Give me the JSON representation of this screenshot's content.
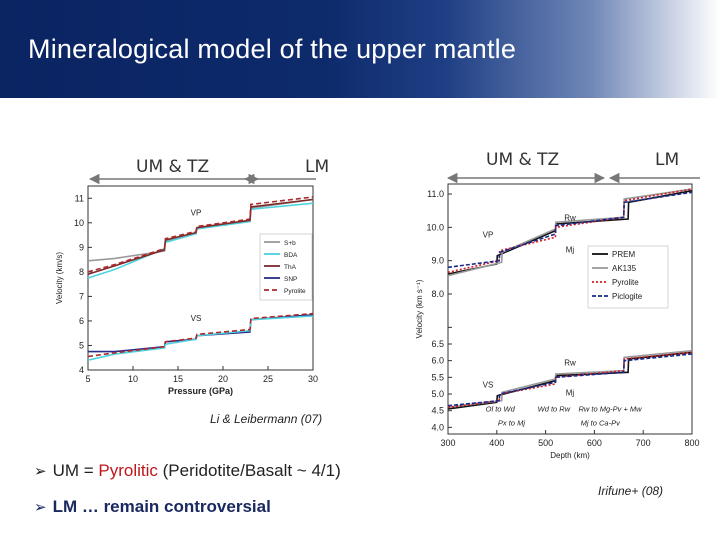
{
  "slide": {
    "title": "Mineralogical model of the upper mantle",
    "left_labels": {
      "um_tz": "UM & TZ",
      "lm": "LM"
    },
    "right_labels": {
      "um_tz": "UM & TZ",
      "lm": "LM"
    },
    "left_caption": "Li & Leibermann (07)",
    "right_caption": "Irifune+ (08)",
    "bullets": [
      {
        "prefix": "UM = ",
        "highlight": "Pyrolitic",
        "suffix": " (Peridotite/Basalt ~ 4/1)"
      },
      {
        "text": "LM … remain controversial"
      }
    ]
  },
  "chart_data": [
    {
      "type": "line",
      "xlabel": "Pressure (GPa)",
      "ylabel": "Velocity (km/s)",
      "xlim": [
        5,
        30
      ],
      "ylim": [
        4,
        11.5
      ],
      "xticks": [
        5,
        10,
        15,
        20,
        25,
        30
      ],
      "yticks": [
        4,
        5,
        6,
        7,
        8,
        9,
        10,
        11
      ],
      "annotations": [
        {
          "text": "VP",
          "x": 17,
          "y": 10.3
        },
        {
          "text": "VS",
          "x": 17,
          "y": 6.0
        }
      ],
      "legend": {
        "placement": "right",
        "entries": [
          "S+b",
          "BDA",
          "ThA",
          "SNP",
          "Pyrolite"
        ]
      },
      "series": [
        {
          "name": "S+b",
          "color": "#9a9a9a",
          "dash": "",
          "x": [
            5,
            8,
            13.5,
            13.6,
            17,
            17.1,
            23,
            23.1,
            30
          ],
          "y": [
            8.45,
            8.55,
            8.85,
            9.25,
            9.6,
            9.8,
            10.1,
            10.6,
            10.95
          ]
        },
        {
          "name": "BDA",
          "color": "#4fd2e0",
          "dash": "",
          "x": [
            5,
            8,
            13.5,
            13.6,
            17,
            17.1,
            23,
            23.1,
            30
          ],
          "y": [
            7.75,
            8.1,
            8.95,
            9.2,
            9.55,
            9.75,
            10.05,
            10.55,
            10.8
          ]
        },
        {
          "name": "ThA",
          "color": "#7a2a2a",
          "dash": "",
          "x": [
            5,
            8,
            13.5,
            13.6,
            17,
            17.1,
            23,
            23.1,
            30
          ],
          "y": [
            7.9,
            8.25,
            8.9,
            9.3,
            9.6,
            9.8,
            10.1,
            10.65,
            10.95
          ]
        },
        {
          "name": "SNP",
          "color": "#2a2a8a",
          "dash": "",
          "x": [
            5,
            8,
            13.5,
            13.6,
            17,
            17.1,
            23,
            23.1,
            30
          ],
          "y": [
            4.75,
            4.75,
            4.95,
            5.15,
            5.25,
            5.4,
            5.55,
            6.05,
            6.25
          ]
        },
        {
          "name": "Pyrolite",
          "color": "#b0282a",
          "dash": "5,3",
          "x": [
            5,
            8,
            13.5,
            13.6,
            17,
            17.1,
            23,
            23.1,
            30
          ],
          "y": [
            8.0,
            8.3,
            8.95,
            9.35,
            9.65,
            9.85,
            10.15,
            10.75,
            11.05
          ]
        },
        {
          "name": "",
          "color": "#4fd2e0",
          "dash": "",
          "x": [
            5,
            8,
            13.5,
            13.6,
            17,
            17.1,
            23,
            23.1,
            30
          ],
          "y": [
            4.4,
            4.65,
            4.9,
            5.05,
            5.25,
            5.4,
            5.6,
            6.05,
            6.2
          ]
        },
        {
          "name": "",
          "color": "#b0282a",
          "dash": "5,3",
          "x": [
            5,
            8,
            13.5,
            13.6,
            17,
            17.1,
            23,
            23.1,
            30
          ],
          "y": [
            4.55,
            4.7,
            4.95,
            5.15,
            5.3,
            5.45,
            5.65,
            6.1,
            6.3
          ]
        }
      ]
    },
    {
      "type": "line",
      "xlabel": "Depth (km)",
      "ylabel": "Velocity (km s⁻¹)",
      "xlim": [
        300,
        800
      ],
      "ylim": [
        3.8,
        11.3
      ],
      "xticks": [
        300,
        400,
        500,
        600,
        700,
        800
      ],
      "yticks": [
        4.0,
        4.5,
        5.0,
        5.5,
        6.0,
        6.5,
        7.0,
        8.0,
        9.0,
        10.0,
        11.0
      ],
      "yticks_labeled": [
        4.0,
        4.5,
        5.0,
        5.5,
        6.0,
        6.5,
        8.0,
        9.0,
        10.0,
        11.0
      ],
      "annotations": [
        {
          "text": "Rw",
          "x": 550,
          "y": 10.2
        },
        {
          "text": "Mj",
          "x": 550,
          "y": 9.25
        },
        {
          "text": "Rw",
          "x": 550,
          "y": 5.85
        },
        {
          "text": "Mj",
          "x": 550,
          "y": 4.95
        },
        {
          "text": "VP",
          "x": 382,
          "y": 9.7
        },
        {
          "text": "VS",
          "x": 382,
          "y": 5.2
        }
      ],
      "legend": {
        "placement": "right",
        "entries": [
          "PREM",
          "AK135",
          "Pyrolite",
          "Piclogite"
        ]
      },
      "phase_labels": [
        {
          "text": "Ol to Wd",
          "x": 407,
          "y": 4.47
        },
        {
          "text": "Wd to Rw",
          "x": 517,
          "y": 4.47
        },
        {
          "text": "Rw to Mg-Pv + Mw",
          "x": 632,
          "y": 4.47
        },
        {
          "text": "Px to Mj",
          "x": 430,
          "y": 4.05
        },
        {
          "text": "Mj to Ca-Pv",
          "x": 612,
          "y": 4.05
        }
      ],
      "series": [
        {
          "name": "PREM",
          "color": "#111111",
          "dash": "",
          "x": [
            300,
            400,
            401,
            520,
            521,
            669,
            670,
            800
          ],
          "y": [
            8.6,
            8.9,
            9.15,
            9.9,
            10.1,
            10.25,
            10.75,
            11.1
          ]
        },
        {
          "name": "AK135",
          "color": "#9a9a9a",
          "dash": "",
          "x": [
            300,
            410,
            411,
            520,
            521,
            660,
            661,
            800
          ],
          "y": [
            8.55,
            8.95,
            9.25,
            9.95,
            10.15,
            10.3,
            10.85,
            11.15
          ]
        },
        {
          "name": "Pyrolite",
          "color": "#d41c24",
          "dash": "2,2",
          "x": [
            300,
            405,
            406,
            520,
            521,
            660,
            661,
            800
          ],
          "y": [
            8.65,
            9.0,
            9.3,
            9.7,
            10.0,
            10.3,
            10.8,
            11.15
          ]
        },
        {
          "name": "Piclogite",
          "color": "#1a2a8a",
          "dash": "4,2",
          "x": [
            300,
            405,
            406,
            520,
            521,
            660,
            661,
            800
          ],
          "y": [
            8.8,
            9.0,
            9.25,
            9.8,
            10.05,
            10.3,
            10.75,
            11.05
          ]
        },
        {
          "name": "",
          "color": "#111111",
          "dash": "",
          "x": [
            300,
            400,
            401,
            520,
            521,
            669,
            670,
            800
          ],
          "y": [
            4.55,
            4.75,
            4.95,
            5.4,
            5.55,
            5.65,
            6.05,
            6.25
          ]
        },
        {
          "name": "",
          "color": "#9a9a9a",
          "dash": "",
          "x": [
            300,
            410,
            411,
            520,
            521,
            660,
            661,
            800
          ],
          "y": [
            4.6,
            4.8,
            5.05,
            5.45,
            5.6,
            5.7,
            6.1,
            6.3
          ]
        },
        {
          "name": "",
          "color": "#d41c24",
          "dash": "2,2",
          "x": [
            300,
            405,
            406,
            520,
            521,
            660,
            661,
            800
          ],
          "y": [
            4.6,
            4.8,
            5.0,
            5.3,
            5.5,
            5.7,
            6.05,
            6.25
          ]
        },
        {
          "name": "",
          "color": "#1a2a8a",
          "dash": "4,2",
          "x": [
            300,
            405,
            406,
            520,
            521,
            660,
            661,
            800
          ],
          "y": [
            4.65,
            4.8,
            5.0,
            5.35,
            5.5,
            5.65,
            6.0,
            6.2
          ]
        }
      ]
    }
  ]
}
